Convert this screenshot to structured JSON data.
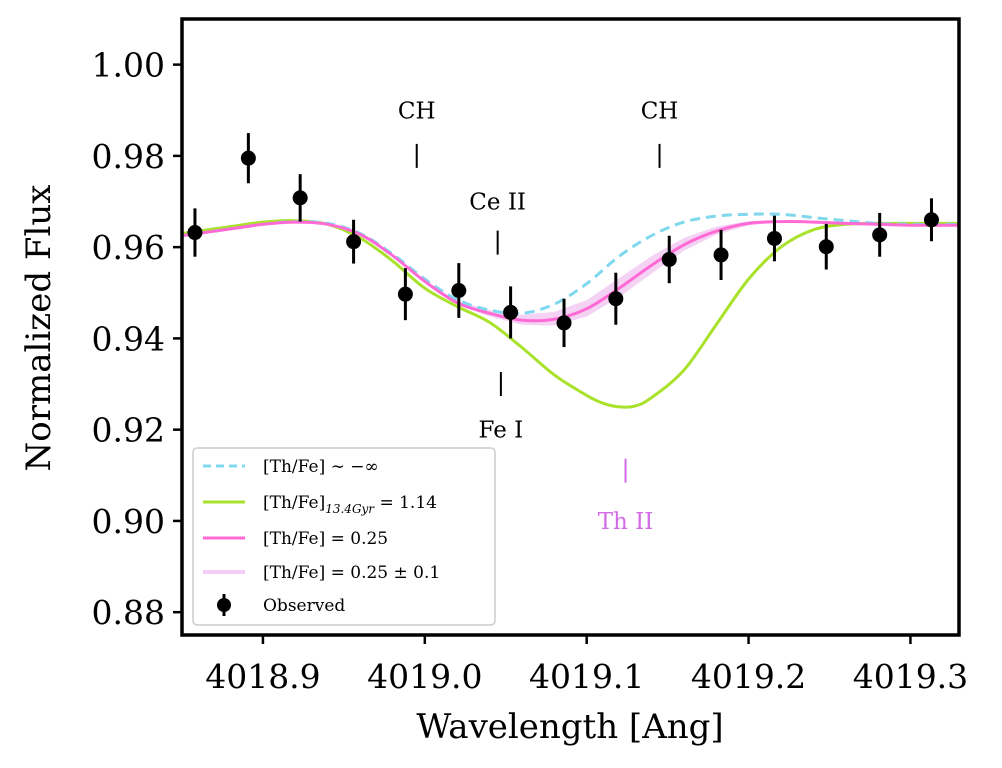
{
  "chart_data": {
    "type": "line",
    "xlabel": "Wavelength [Ang]",
    "ylabel": "Normalized Flux",
    "xlim": [
      4018.85,
      4019.33
    ],
    "ylim": [
      0.875,
      1.01
    ],
    "x_ticks": [
      4018.9,
      4019.0,
      4019.1,
      4019.2,
      4019.3
    ],
    "x_tick_labels": [
      "4018.9",
      "4019.0",
      "4019.1",
      "4019.2",
      "4019.3"
    ],
    "y_ticks": [
      0.88,
      0.9,
      0.92,
      0.94,
      0.96,
      0.98,
      1.0
    ],
    "y_tick_labels": [
      "0.88",
      "0.90",
      "0.92",
      "0.94",
      "0.96",
      "0.98",
      "1.00"
    ],
    "grid": false,
    "legend_position": "lower-left",
    "legend": [
      {
        "key": "noTh",
        "label": "[Th/Fe] ∼ −∞"
      },
      {
        "key": "age",
        "label_main": "[Th/Fe]",
        "label_sub": "13.4Gyr",
        "label_tail": " = 1.14"
      },
      {
        "key": "best",
        "label": "[Th/Fe] = 0.25"
      },
      {
        "key": "band",
        "label": "[Th/Fe] = 0.25 ± 0.1"
      },
      {
        "key": "obs",
        "label": "Observed"
      }
    ],
    "colors": {
      "noTh": "#7fd8ee",
      "age": "#a8e22a",
      "best": "#ff6ad5",
      "band": "#f3cdf3",
      "obs": "#000000",
      "th_label": "#d36be8"
    },
    "line_labels": [
      {
        "text": "CH",
        "x": 4018.995,
        "tick_y": 0.98,
        "text_y": 0.99,
        "position": "above",
        "color": "#000000"
      },
      {
        "text": "CH",
        "x": 4019.145,
        "tick_y": 0.98,
        "text_y": 0.99,
        "position": "above",
        "color": "#000000"
      },
      {
        "text": "Ce II",
        "x": 4019.045,
        "tick_y": 0.961,
        "text_y": 0.97,
        "position": "above",
        "color": "#000000"
      },
      {
        "text": "Fe I",
        "x": 4019.047,
        "tick_y": 0.93,
        "text_y": 0.92,
        "position": "below",
        "color": "#000000"
      },
      {
        "text": "Th II",
        "x": 4019.124,
        "tick_y": 0.911,
        "text_y": 0.9,
        "position": "below",
        "color": "#d36be8"
      }
    ],
    "observed": {
      "name": "Observed",
      "x": [
        4018.858,
        4018.891,
        4018.923,
        4018.956,
        4018.988,
        4019.021,
        4019.053,
        4019.086,
        4019.118,
        4019.151,
        4019.183,
        4019.216,
        4019.248,
        4019.281,
        4019.313
      ],
      "y": [
        0.9632,
        0.9795,
        0.9708,
        0.9612,
        0.9497,
        0.9505,
        0.9457,
        0.9434,
        0.9487,
        0.9573,
        0.9583,
        0.9619,
        0.9601,
        0.9627,
        0.966
      ],
      "yerr": [
        0.0053,
        0.0055,
        0.0052,
        0.0048,
        0.0057,
        0.006,
        0.0057,
        0.0053,
        0.0057,
        0.0052,
        0.0055,
        0.005,
        0.005,
        0.0048,
        0.0047
      ]
    },
    "series": [
      {
        "key": "noTh",
        "style": "dashed",
        "x": [
          4018.85,
          4018.88,
          4018.9,
          4018.92,
          4018.94,
          4018.96,
          4018.98,
          4019.0,
          4019.02,
          4019.04,
          4019.06,
          4019.08,
          4019.1,
          4019.12,
          4019.14,
          4019.16,
          4019.18,
          4019.2,
          4019.22,
          4019.24,
          4019.26,
          4019.28,
          4019.3,
          4019.33
        ],
        "y": [
          0.9625,
          0.964,
          0.965,
          0.9656,
          0.9652,
          0.963,
          0.9585,
          0.953,
          0.9485,
          0.9462,
          0.9455,
          0.9475,
          0.952,
          0.958,
          0.9625,
          0.9655,
          0.9668,
          0.9672,
          0.9672,
          0.9665,
          0.9658,
          0.9652,
          0.965,
          0.965
        ]
      },
      {
        "key": "age",
        "style": "solid",
        "x": [
          4018.85,
          4018.88,
          4018.9,
          4018.92,
          4018.94,
          4018.96,
          4018.98,
          4019.0,
          4019.02,
          4019.04,
          4019.06,
          4019.08,
          4019.1,
          4019.11,
          4019.12,
          4019.13,
          4019.14,
          4019.16,
          4019.18,
          4019.2,
          4019.22,
          4019.24,
          4019.26,
          4019.28,
          4019.3,
          4019.33
        ],
        "y": [
          0.963,
          0.9645,
          0.9655,
          0.9658,
          0.965,
          0.962,
          0.957,
          0.951,
          0.947,
          0.9435,
          0.938,
          0.932,
          0.9275,
          0.9258,
          0.925,
          0.9252,
          0.927,
          0.933,
          0.943,
          0.953,
          0.96,
          0.9638,
          0.965,
          0.9652,
          0.9652,
          0.9652
        ]
      },
      {
        "key": "best",
        "style": "solid",
        "x": [
          4018.85,
          4018.88,
          4018.9,
          4018.92,
          4018.94,
          4018.96,
          4018.98,
          4019.0,
          4019.02,
          4019.04,
          4019.06,
          4019.08,
          4019.1,
          4019.12,
          4019.14,
          4019.16,
          4019.18,
          4019.2,
          4019.22,
          4019.24,
          4019.26,
          4019.28,
          4019.3,
          4019.33
        ],
        "y": [
          0.9625,
          0.964,
          0.965,
          0.9655,
          0.965,
          0.9628,
          0.9582,
          0.9525,
          0.9478,
          0.9455,
          0.944,
          0.9442,
          0.9465,
          0.951,
          0.956,
          0.9605,
          0.9635,
          0.9652,
          0.9656,
          0.9655,
          0.9652,
          0.965,
          0.9648,
          0.9648
        ]
      }
    ],
    "band": {
      "key": "band",
      "x": [
        4018.85,
        4018.88,
        4018.9,
        4018.92,
        4018.94,
        4018.96,
        4018.98,
        4019.0,
        4019.02,
        4019.04,
        4019.06,
        4019.08,
        4019.1,
        4019.12,
        4019.14,
        4019.16,
        4019.18,
        4019.2,
        4019.22,
        4019.24,
        4019.26,
        4019.28,
        4019.3,
        4019.33
      ],
      "y_low": [
        0.9625,
        0.964,
        0.965,
        0.9655,
        0.965,
        0.9627,
        0.9581,
        0.9523,
        0.9474,
        0.9448,
        0.943,
        0.9428,
        0.9448,
        0.949,
        0.9542,
        0.9592,
        0.9627,
        0.9648,
        0.9654,
        0.9654,
        0.9652,
        0.965,
        0.9648,
        0.9648
      ],
      "y_high": [
        0.9625,
        0.964,
        0.965,
        0.9655,
        0.965,
        0.9629,
        0.9583,
        0.9527,
        0.9482,
        0.9462,
        0.9452,
        0.9458,
        0.9484,
        0.9532,
        0.958,
        0.962,
        0.9645,
        0.9657,
        0.9658,
        0.9656,
        0.9653,
        0.965,
        0.9648,
        0.9648
      ]
    }
  }
}
